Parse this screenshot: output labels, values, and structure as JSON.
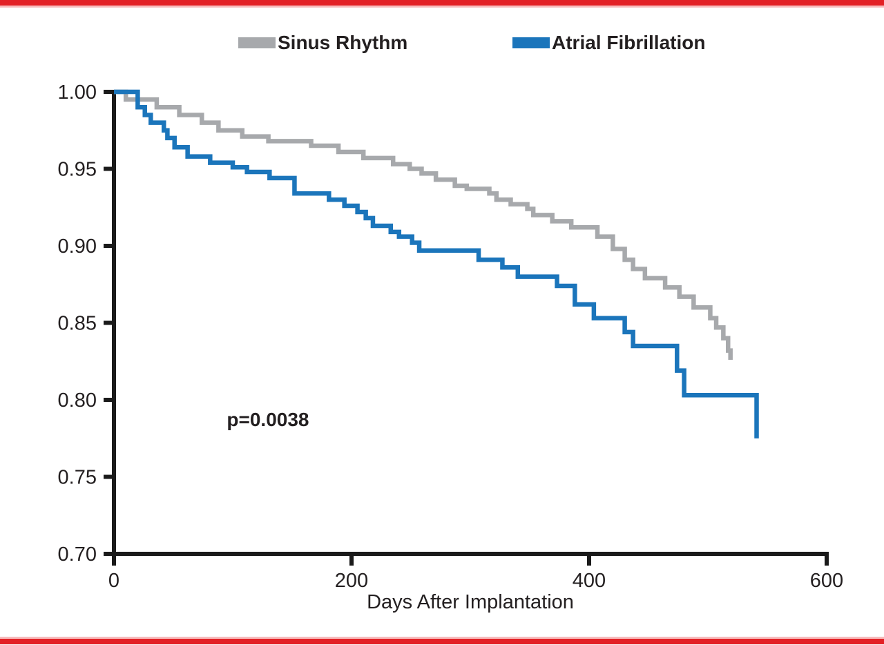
{
  "page": {
    "background": "#ffffff",
    "border_color": "#e32126",
    "text_color": "#231f20"
  },
  "chart_data": {
    "type": "line",
    "subtype": "kaplan-meier-step",
    "title": "",
    "xlabel": "Days After Implantation",
    "ylabel": "",
    "xlim": [
      0,
      600
    ],
    "ylim": [
      0.7,
      1.0
    ],
    "xticks": [
      0,
      200,
      400,
      600
    ],
    "xtick_labels": [
      "0",
      "200",
      "400",
      "600"
    ],
    "yticks": [
      1.0,
      0.95,
      0.9,
      0.85,
      0.8,
      0.75,
      0.7
    ],
    "ytick_labels": [
      "1.00",
      "0.95",
      "0.90",
      "0.85",
      "0.80",
      "0.75",
      "0.70"
    ],
    "grid": false,
    "legend_position": "top",
    "axis_color": "#1a1a1a",
    "annotation": {
      "text": "p=0.0038",
      "x": 95,
      "y": 0.787
    },
    "series": [
      {
        "name": "Sinus Rhythm",
        "color": "#a7a9ac",
        "points": [
          [
            0,
            1.0
          ],
          [
            10,
            0.995
          ],
          [
            36,
            0.99
          ],
          [
            55,
            0.985
          ],
          [
            74,
            0.98
          ],
          [
            88,
            0.975
          ],
          [
            108,
            0.971
          ],
          [
            130,
            0.968
          ],
          [
            166,
            0.965
          ],
          [
            189,
            0.961
          ],
          [
            210,
            0.957
          ],
          [
            235,
            0.953
          ],
          [
            249,
            0.95
          ],
          [
            259,
            0.947
          ],
          [
            271,
            0.943
          ],
          [
            287,
            0.939
          ],
          [
            297,
            0.937
          ],
          [
            316,
            0.934
          ],
          [
            322,
            0.93
          ],
          [
            334,
            0.927
          ],
          [
            348,
            0.924
          ],
          [
            353,
            0.92
          ],
          [
            369,
            0.916
          ],
          [
            385,
            0.912
          ],
          [
            407,
            0.906
          ],
          [
            420,
            0.898
          ],
          [
            430,
            0.891
          ],
          [
            437,
            0.885
          ],
          [
            447,
            0.879
          ],
          [
            464,
            0.873
          ],
          [
            476,
            0.867
          ],
          [
            488,
            0.86
          ],
          [
            502,
            0.853
          ],
          [
            507,
            0.847
          ],
          [
            513,
            0.84
          ],
          [
            517,
            0.832
          ],
          [
            519,
            0.826
          ]
        ]
      },
      {
        "name": "Atrial Fibrillation",
        "color": "#1b75bb",
        "points": [
          [
            0,
            1.0
          ],
          [
            20,
            0.99
          ],
          [
            26,
            0.985
          ],
          [
            31,
            0.98
          ],
          [
            42,
            0.975
          ],
          [
            45,
            0.97
          ],
          [
            51,
            0.964
          ],
          [
            62,
            0.958
          ],
          [
            81,
            0.954
          ],
          [
            100,
            0.951
          ],
          [
            112,
            0.948
          ],
          [
            131,
            0.944
          ],
          [
            152,
            0.934
          ],
          [
            181,
            0.93
          ],
          [
            194,
            0.926
          ],
          [
            205,
            0.922
          ],
          [
            212,
            0.918
          ],
          [
            218,
            0.913
          ],
          [
            233,
            0.909
          ],
          [
            240,
            0.906
          ],
          [
            251,
            0.902
          ],
          [
            257,
            0.897
          ],
          [
            307,
            0.891
          ],
          [
            327,
            0.886
          ],
          [
            340,
            0.88
          ],
          [
            373,
            0.874
          ],
          [
            388,
            0.862
          ],
          [
            404,
            0.853
          ],
          [
            430,
            0.844
          ],
          [
            437,
            0.835
          ],
          [
            474,
            0.819
          ],
          [
            480,
            0.803
          ],
          [
            541,
            0.775
          ]
        ]
      }
    ]
  }
}
